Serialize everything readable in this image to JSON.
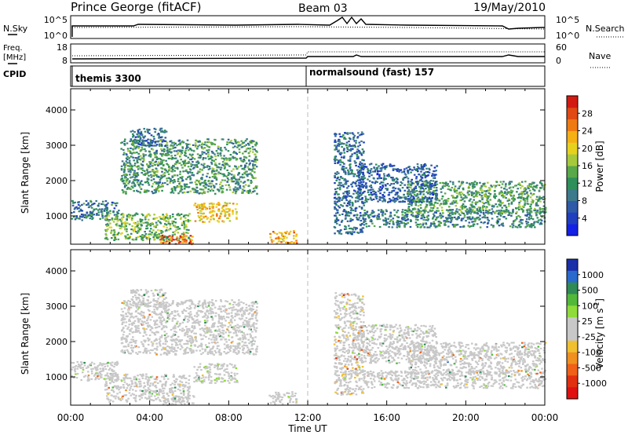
{
  "header": {
    "station": "Prince George (fitACF)",
    "beam": "Beam 03",
    "date": "19/May/2010"
  },
  "noise_panel": {
    "left_label": "N.Sky",
    "left_ticks": [
      "10^5",
      "10^0"
    ],
    "right_label": "N.Search",
    "right_ticks": [
      "10^5",
      "10^0"
    ]
  },
  "freq_panel": {
    "left_label_1": "Freq.",
    "left_label_2": "[MHz]",
    "left_ticks": [
      "18",
      "8"
    ],
    "right_label": "Nave",
    "right_ticks": [
      "60",
      "0"
    ]
  },
  "cpid_panel": {
    "label": "CPID",
    "modes": [
      {
        "name": "themis 3300",
        "start_hour": 0
      },
      {
        "name": "normalsound (fast) 157",
        "start_hour": 12
      }
    ]
  },
  "axes": {
    "ylabel": "Slant Range [km]",
    "yticks": [
      "1000",
      "2000",
      "3000",
      "4000"
    ],
    "xlabel": "Time UT",
    "xticks": [
      "00:00",
      "04:00",
      "08:00",
      "12:00",
      "16:00",
      "20:00",
      "00:00"
    ]
  },
  "colorbars": {
    "power": {
      "label": "Power [dB]",
      "ticks": [
        "4",
        "8",
        "12",
        "16",
        "20",
        "24",
        "28"
      ],
      "colors": [
        "#1420e6",
        "#1f3fbf",
        "#2e5aa8",
        "#3d7a8c",
        "#2f8f5a",
        "#59a84a",
        "#a6c93b",
        "#e6d21e",
        "#f5b014",
        "#f07a12",
        "#e04a12",
        "#d21a12"
      ]
    },
    "velocity": {
      "label": "Velocity [m s",
      "label_sup": "-1",
      "label_end": "]",
      "ticks": [
        "1000",
        "500",
        "100",
        "25",
        "-25",
        "-100",
        "-500",
        "-1000"
      ],
      "colors": [
        "#1a2fa8",
        "#2a6acc",
        "#2f8a55",
        "#52b83a",
        "#8fdb3a",
        "#c8c8c8",
        "#c8c8c8",
        "#f0c030",
        "#f09020",
        "#f06018",
        "#e03010",
        "#e01010"
      ]
    }
  },
  "chart_data": {
    "type": "heatmap",
    "title": "Prince George (fitACF)  Beam 03  19/May/2010",
    "xlabel": "Time UT",
    "ylabel": "Slant Range [km]",
    "xlim": [
      0,
      24
    ],
    "ylim": [
      200,
      4600
    ],
    "grid": false,
    "series": [
      {
        "name": "Power [dB]",
        "zlim": [
          0,
          30
        ]
      },
      {
        "name": "Velocity [m s-1]",
        "zlim": [
          -1000,
          1000
        ]
      }
    ],
    "echo_regions": [
      {
        "t0": 0.0,
        "t1": 2.4,
        "r0": 900,
        "r1": 1450,
        "power": 8,
        "velocity": 10
      },
      {
        "t0": 1.7,
        "t1": 6.0,
        "r0": 320,
        "r1": 1100,
        "power": 14,
        "velocity": 15
      },
      {
        "t0": 4.5,
        "t1": 6.2,
        "r0": 220,
        "r1": 500,
        "power": 26,
        "velocity": 20
      },
      {
        "t0": 2.5,
        "t1": 9.4,
        "r0": 1650,
        "r1": 3200,
        "power": 11,
        "velocity": 15
      },
      {
        "t0": 6.2,
        "t1": 8.4,
        "r0": 850,
        "r1": 1400,
        "power": 20,
        "velocity": 150
      },
      {
        "t0": 3.0,
        "t1": 4.8,
        "r0": 3000,
        "r1": 3500,
        "power": 6,
        "velocity": 20
      },
      {
        "t0": 10.0,
        "t1": 11.4,
        "r0": 250,
        "r1": 600,
        "power": 22,
        "velocity": 120
      },
      {
        "t0": 13.3,
        "t1": 14.8,
        "r0": 500,
        "r1": 3400,
        "power": 7,
        "velocity": -150
      },
      {
        "t0": 14.8,
        "t1": 24.0,
        "r0": 700,
        "r1": 1200,
        "power": 9,
        "velocity": 0
      },
      {
        "t0": 17.0,
        "t1": 24.0,
        "r0": 1100,
        "r1": 2000,
        "power": 12,
        "velocity": 0
      },
      {
        "t0": 14.5,
        "t1": 18.5,
        "r0": 1400,
        "r1": 2500,
        "power": 6,
        "velocity": -30
      }
    ]
  }
}
